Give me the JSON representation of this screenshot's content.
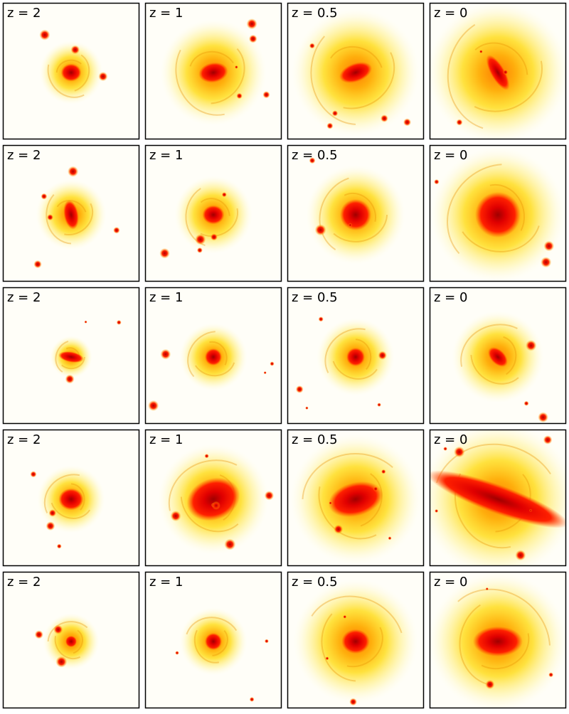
{
  "panels": [
    [
      "z = 2",
      "z = 1",
      "z = 0.5",
      "z = 0"
    ],
    [
      "z = 2",
      "z = 1",
      "z = 0.5",
      "z = 0"
    ],
    [
      "z = 2",
      "z = 1",
      "z = 0.5",
      "z = 0"
    ],
    [
      "z = 2",
      "z = 1",
      "z = 0.5",
      "z = 0"
    ],
    [
      "z = 2",
      "z = 1",
      "z = 0.5",
      "z = 0"
    ]
  ]
}
